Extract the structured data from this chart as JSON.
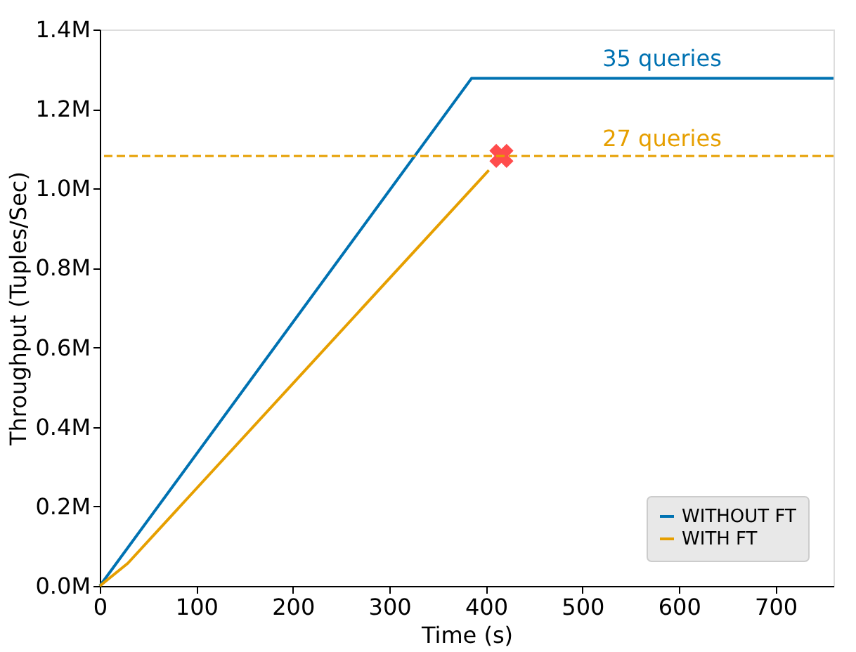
{
  "chart_data": {
    "type": "line",
    "xlabel": "Time (s)",
    "ylabel": "Throughput (Tuples/Sec)",
    "xlim": [
      0,
      760
    ],
    "xticks": [
      0,
      100,
      200,
      300,
      400,
      500,
      600,
      700
    ],
    "ylim": [
      0,
      1400000
    ],
    "yticks": [
      {
        "value": 0,
        "label": "0.0M"
      },
      {
        "value": 200000,
        "label": "0.2M"
      },
      {
        "value": 400000,
        "label": "0.4M"
      },
      {
        "value": 600000,
        "label": "0.6M"
      },
      {
        "value": 800000,
        "label": "0.8M"
      },
      {
        "value": 1000000,
        "label": "1.0M"
      },
      {
        "value": 1200000,
        "label": "1.2M"
      },
      {
        "value": 1400000,
        "label": "1.4M"
      }
    ],
    "series": [
      {
        "name": "WITHOUT FT",
        "color": "#0072b2",
        "x": [
          0,
          385,
          760
        ],
        "values": [
          0,
          1277000,
          1277000
        ]
      },
      {
        "name": "WITH FT",
        "color": "#e69f00",
        "x": [
          0,
          29,
          403
        ],
        "values": [
          0,
          57000,
          1046000
        ]
      },
      {
        "type": "scatter",
        "marker": "cross",
        "color": "#ff0000",
        "x": [
          416
        ],
        "values": [
          1082000
        ]
      }
    ],
    "ref_lines": [
      {
        "axis": "y",
        "value": 1082000,
        "color": "#e69f00",
        "line_style": "dashed"
      }
    ],
    "annotations": [
      "35 queries",
      "27 queries"
    ],
    "grid": false,
    "legend": "bottom right",
    "line_style": "solid"
  }
}
